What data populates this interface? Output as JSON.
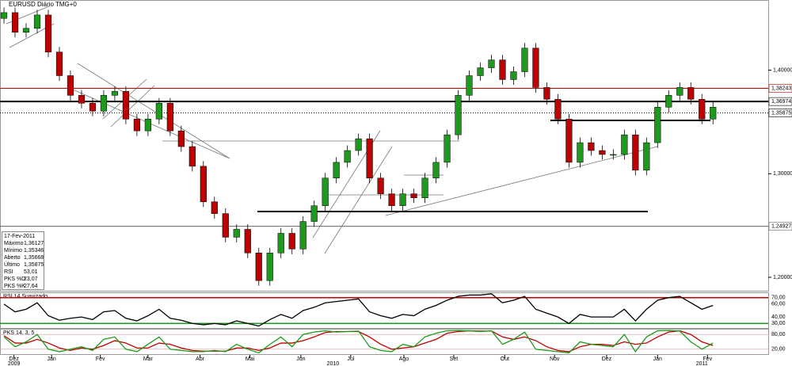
{
  "chart_data": {
    "type": "candlestick",
    "title": "EURUSD Diário TMG+0",
    "xlim": [
      -0.36,
      67.2
    ],
    "ylim": [
      1.187,
      1.467
    ],
    "yticks": [
      {
        "value": 1.2,
        "label": "1,20000"
      },
      {
        "value": 1.3,
        "label": "1,30000"
      },
      {
        "value": 1.4,
        "label": "1,40000"
      }
    ],
    "xticks": [
      {
        "value": 0.9,
        "label": "Dez"
      },
      {
        "value": 4.3,
        "label": "Jan"
      },
      {
        "value": 8.7,
        "label": "Fev"
      },
      {
        "value": 13.0,
        "label": "Mar"
      },
      {
        "value": 17.7,
        "label": "Abr"
      },
      {
        "value": 22.2,
        "label": "Mai"
      },
      {
        "value": 26.8,
        "label": "Jun"
      },
      {
        "value": 31.3,
        "label": "Jul"
      },
      {
        "value": 36.1,
        "label": "Ago"
      },
      {
        "value": 40.6,
        "label": "Set"
      },
      {
        "value": 45.2,
        "label": "Out"
      },
      {
        "value": 49.7,
        "label": "Nov"
      },
      {
        "value": 54.4,
        "label": "Dez"
      },
      {
        "value": 59.0,
        "label": "Jan"
      },
      {
        "value": 63.5,
        "label": "Fev"
      }
    ],
    "years": [
      {
        "value": 0.9,
        "label": "2009"
      },
      {
        "value": 29.7,
        "label": "2010"
      },
      {
        "value": 63.0,
        "label": "2011"
      }
    ],
    "up_color": "#1a9c1a",
    "down_color": "#c00000",
    "open": [
      1.45,
      1.4556,
      1.4366,
      1.4404,
      1.4533,
      1.4175,
      1.3947,
      1.3757,
      1.3681,
      1.3605,
      1.3757,
      1.3795,
      1.3528,
      1.3414,
      1.3528,
      1.3681,
      1.3414,
      1.3262,
      1.3072,
      1.2729,
      1.2615,
      1.2387,
      1.2463,
      1.2235,
      1.1968,
      1.2235,
      1.2425,
      1.2273,
      1.2539,
      1.2691,
      1.2958,
      1.311,
      1.3224,
      1.3338,
      1.2958,
      1.2806,
      1.2691,
      1.2806,
      1.2767,
      1.2958,
      1.311,
      1.3376,
      1.3757,
      1.3947,
      1.4023,
      1.4099,
      1.3909,
      1.3985,
      1.4213,
      1.3833,
      1.3719,
      1.3528,
      1.311,
      1.33,
      1.3224,
      1.3186,
      1.3186,
      1.3376,
      1.3034,
      1.33,
      1.3643,
      1.3757,
      1.3833,
      1.3719,
      1.3528
    ],
    "high": [
      1.4606,
      1.4606,
      1.4454,
      1.4583,
      1.4583,
      1.4225,
      1.3997,
      1.3807,
      1.3731,
      1.3807,
      1.3845,
      1.3845,
      1.3578,
      1.3578,
      1.3731,
      1.3731,
      1.3464,
      1.3312,
      1.3122,
      1.2779,
      1.2665,
      1.2513,
      1.2513,
      1.2285,
      1.2285,
      1.2475,
      1.2475,
      1.2589,
      1.2741,
      1.3008,
      1.316,
      1.3274,
      1.3388,
      1.3388,
      1.3008,
      1.2856,
      1.2856,
      1.2856,
      1.3008,
      1.316,
      1.3426,
      1.3807,
      1.3997,
      1.4073,
      1.4149,
      1.4149,
      1.4035,
      1.4263,
      1.4263,
      1.3883,
      1.3769,
      1.3578,
      1.335,
      1.335,
      1.3274,
      1.3236,
      1.3426,
      1.3426,
      1.335,
      1.3693,
      1.3807,
      1.3883,
      1.3883,
      1.3769,
      1.3693
    ],
    "low": [
      1.445,
      1.4316,
      1.4316,
      1.4354,
      1.4125,
      1.3897,
      1.3707,
      1.3631,
      1.3555,
      1.3555,
      1.3707,
      1.3478,
      1.3364,
      1.3364,
      1.3478,
      1.3364,
      1.3212,
      1.3022,
      1.2679,
      1.2565,
      1.2337,
      1.2337,
      1.2185,
      1.1918,
      1.1918,
      1.2185,
      1.2223,
      1.2223,
      1.2489,
      1.2641,
      1.2908,
      1.306,
      1.3174,
      1.2908,
      1.2756,
      1.2641,
      1.2641,
      1.2717,
      1.2717,
      1.2908,
      1.306,
      1.3326,
      1.3707,
      1.3897,
      1.3973,
      1.3859,
      1.3859,
      1.3935,
      1.3783,
      1.3669,
      1.3478,
      1.306,
      1.306,
      1.3174,
      1.3136,
      1.3136,
      1.3136,
      1.2984,
      1.2984,
      1.325,
      1.3593,
      1.3707,
      1.3669,
      1.3478,
      1.3478
    ],
    "close": [
      1.4556,
      1.4366,
      1.4404,
      1.4533,
      1.4175,
      1.3947,
      1.3757,
      1.3681,
      1.3605,
      1.3757,
      1.3795,
      1.3528,
      1.3414,
      1.3528,
      1.3681,
      1.3414,
      1.3262,
      1.3072,
      1.2729,
      1.2615,
      1.2387,
      1.2463,
      1.2235,
      1.1968,
      1.2235,
      1.2425,
      1.2273,
      1.2539,
      1.2691,
      1.2958,
      1.311,
      1.3224,
      1.3338,
      1.2958,
      1.2806,
      1.2691,
      1.2806,
      1.2767,
      1.2958,
      1.311,
      1.3376,
      1.3757,
      1.3947,
      1.4023,
      1.4099,
      1.3909,
      1.3985,
      1.4213,
      1.3833,
      1.3719,
      1.3528,
      1.311,
      1.33,
      1.3224,
      1.3186,
      1.3186,
      1.3376,
      1.3034,
      1.33,
      1.3643,
      1.3757,
      1.3833,
      1.3719,
      1.3528,
      1.3643
    ],
    "levels": [
      {
        "value": 1.38243,
        "label": "1,38243",
        "color": "#c00000",
        "width": 1
      },
      {
        "value": 1.36974,
        "label": "1,36974",
        "color": "#000000",
        "width": 2
      },
      {
        "value": 1.35875,
        "label": "1,35875",
        "color": "#000000",
        "width": 1,
        "dashed": true
      },
      {
        "value": 1.24927,
        "label": "1,24927",
        "color": "#666666",
        "width": 1
      }
    ],
    "info": {
      "date": "17-Fev-2011",
      "rows": [
        {
          "label": "Máximo",
          "value": "1,36127",
          "color": "#000000"
        },
        {
          "label": "Mínimo",
          "value": "1,35346",
          "color": "#000000"
        },
        {
          "label": "Aberto",
          "value": "1,35668",
          "color": "#000000"
        },
        {
          "label": "Último",
          "value": "1,35875",
          "color": "#000000"
        },
        {
          "label": "RSI",
          "value": "53,01",
          "color": "#000000"
        },
        {
          "label": "PKS %D",
          "value": "23,07",
          "color": "#c00000"
        },
        {
          "label": "PKS %K",
          "value": "27,64",
          "color": "#408060"
        }
      ]
    },
    "rsi": {
      "title": "RSI 14 Suavizado",
      "ylim": [
        23,
        77
      ],
      "yticks": [
        {
          "value": 70,
          "label": "70,00"
        },
        {
          "value": 60,
          "label": "60,00"
        },
        {
          "value": 40,
          "label": "40,00"
        },
        {
          "value": 30,
          "label": "30,00"
        }
      ],
      "bands": [
        {
          "value": 70,
          "color": "#c00000"
        },
        {
          "value": 30,
          "color": "#1a9c1a"
        }
      ],
      "color": "#000000",
      "values": [
        60,
        48,
        52,
        62,
        42,
        35,
        38,
        40,
        36,
        48,
        50,
        38,
        34,
        42,
        52,
        38,
        35,
        30,
        28,
        30,
        28,
        34,
        30,
        26,
        36,
        44,
        38,
        50,
        55,
        62,
        64,
        66,
        68,
        48,
        42,
        38,
        44,
        42,
        52,
        58,
        66,
        72,
        74,
        74,
        76,
        62,
        66,
        72,
        52,
        46,
        40,
        30,
        44,
        40,
        40,
        40,
        52,
        34,
        52,
        66,
        70,
        72,
        62,
        52,
        58
      ]
    },
    "pks": {
      "title": "PKS 14, 3, 5",
      "ylim": [
        0,
        100
      ],
      "yticks": [
        {
          "value": 80,
          "label": "80,00"
        },
        {
          "value": 20,
          "label": "20,00"
        }
      ],
      "series": [
        {
          "name": "%D",
          "color": "#c00000",
          "values": [
            75,
            45,
            45,
            60,
            45,
            25,
            15,
            25,
            20,
            35,
            55,
            45,
            25,
            25,
            45,
            40,
            25,
            15,
            12,
            12,
            12,
            25,
            25,
            15,
            25,
            45,
            45,
            55,
            70,
            88,
            92,
            92,
            92,
            70,
            40,
            20,
            25,
            30,
            45,
            60,
            85,
            92,
            95,
            94,
            94,
            70,
            60,
            70,
            55,
            30,
            15,
            10,
            30,
            40,
            40,
            35,
            50,
            40,
            45,
            70,
            90,
            95,
            80,
            50,
            35
          ]
        },
        {
          "name": "%K",
          "color": "#1a9c1a",
          "values": [
            70,
            30,
            50,
            80,
            20,
            10,
            20,
            30,
            15,
            60,
            70,
            20,
            10,
            40,
            70,
            20,
            15,
            10,
            10,
            15,
            10,
            40,
            20,
            5,
            40,
            70,
            30,
            80,
            90,
            95,
            90,
            92,
            94,
            30,
            15,
            10,
            40,
            30,
            70,
            85,
            95,
            96,
            95,
            92,
            95,
            40,
            60,
            90,
            20,
            15,
            10,
            5,
            50,
            40,
            35,
            30,
            80,
            10,
            70,
            95,
            96,
            94,
            50,
            20,
            45
          ]
        }
      ]
    }
  }
}
